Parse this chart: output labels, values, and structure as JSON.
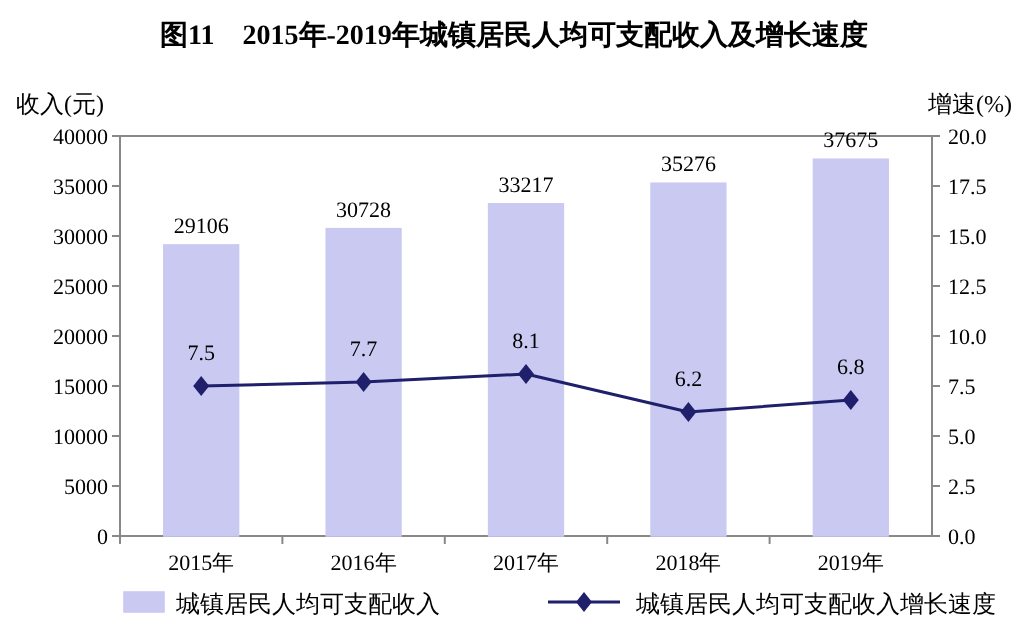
{
  "chart_data": {
    "type": "bar",
    "title": "图11　2015年-2019年城镇居民人均可支配收入及增长速度",
    "ylabel": "收入(元)",
    "y2label": "增速(%)",
    "categories": [
      "2015年",
      "2016年",
      "2017年",
      "2018年",
      "2019年"
    ],
    "series": [
      {
        "name": "城镇居民人均可支配收入",
        "color": "#c9c9f2",
        "values": [
          29106,
          30728,
          33217,
          35276,
          37675
        ]
      },
      {
        "name": "城镇居民人均可支配收入增长速度",
        "type": "line",
        "axis": "y2",
        "color": "#1f1f6b",
        "values": [
          7.5,
          7.7,
          8.1,
          6.2,
          6.8
        ]
      }
    ],
    "ylim": [
      0,
      40000
    ],
    "yticks": [
      0,
      5000,
      10000,
      15000,
      20000,
      25000,
      30000,
      35000,
      40000
    ],
    "y2lim": [
      0,
      20
    ],
    "y2ticks": [
      {
        "value": 0,
        "label": "0.0"
      },
      {
        "value": 2.5,
        "label": "2.5"
      },
      {
        "value": 5,
        "label": "5.0"
      },
      {
        "value": 7.5,
        "label": "7.5"
      },
      {
        "value": 10,
        "label": "10.0"
      },
      {
        "value": 12.5,
        "label": "12.5"
      },
      {
        "value": 15,
        "label": "15.0"
      },
      {
        "value": 17.5,
        "label": "17.5"
      },
      {
        "value": 20,
        "label": "20.0"
      }
    ],
    "data_labels": true,
    "marker": "diamond",
    "legend": "bottom",
    "grid": false
  }
}
